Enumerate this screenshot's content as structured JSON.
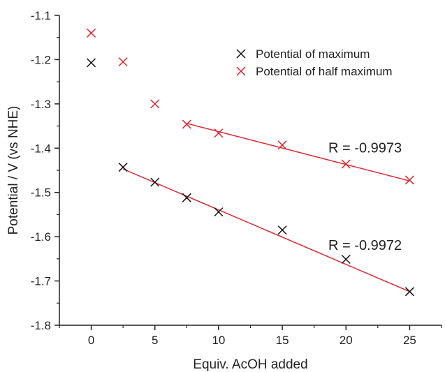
{
  "chart_data": {
    "type": "scatter",
    "xlabel": "Equiv. AcOH added",
    "ylabel": "Potential / V (vs NHE)",
    "xlim": [
      -2.5,
      27.5
    ],
    "ylim": [
      -1.8,
      -1.1
    ],
    "x_ticks": [
      0,
      5,
      10,
      15,
      20,
      25
    ],
    "x_tick_labels": [
      "0",
      "5",
      "10",
      "15",
      "20",
      "25"
    ],
    "y_ticks": [
      -1.1,
      -1.2,
      -1.3,
      -1.4,
      -1.5,
      -1.6,
      -1.7,
      -1.8
    ],
    "y_tick_labels": [
      "-1.1",
      "-1.2",
      "-1.3",
      "-1.4",
      "-1.5",
      "-1.6",
      "-1.7",
      "-1.8"
    ],
    "legend_position": "top-right",
    "series": [
      {
        "name": "Potential of maximum",
        "color": "#111111",
        "marker": "x",
        "x": [
          0,
          2.5,
          5,
          7.5,
          10,
          15,
          20,
          25
        ],
        "y": [
          -1.207,
          -1.443,
          -1.477,
          -1.512,
          -1.544,
          -1.585,
          -1.651,
          -1.724
        ]
      },
      {
        "name": "Potential of half maximum",
        "color": "#e0202a",
        "marker": "x",
        "x": [
          0,
          2.5,
          5,
          7.5,
          10,
          15,
          20,
          25
        ],
        "y": [
          -1.14,
          -1.205,
          -1.3,
          -1.346,
          -1.366,
          -1.393,
          -1.436,
          -1.472
        ]
      }
    ],
    "fits": [
      {
        "series": "Potential of half maximum",
        "color": "#e0202a",
        "x": [
          7.5,
          25
        ],
        "y": [
          -1.344,
          -1.474
        ]
      },
      {
        "series": "Potential of maximum",
        "color": "#e0202a",
        "x": [
          2.5,
          25
        ],
        "y": [
          -1.447,
          -1.724
        ]
      }
    ],
    "annotations": [
      {
        "text": "R = -0.9973",
        "x": 21.5,
        "y": -1.41
      },
      {
        "text": "R = -0.9972",
        "x": 21.5,
        "y": -1.63
      }
    ]
  }
}
